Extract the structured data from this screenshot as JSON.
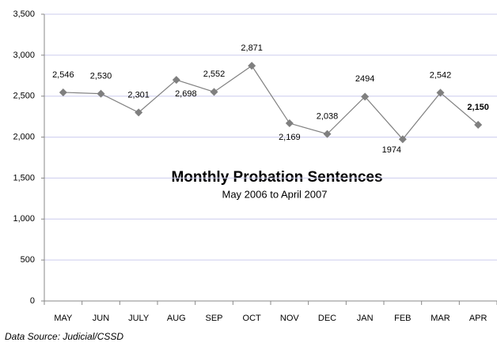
{
  "chart_data": {
    "type": "line",
    "title": "Monthly Probation Sentences",
    "subtitle": "May 2006 to April 2007",
    "source": "Data Source: Judicial/CSSD",
    "categories": [
      "MAY",
      "JUN",
      "JULY",
      "AUG",
      "SEP",
      "OCT",
      "NOV",
      "DEC",
      "JAN",
      "FEB",
      "MAR",
      "APR"
    ],
    "values": [
      2546,
      2530,
      2301,
      2698,
      2552,
      2871,
      2169,
      2038,
      2494,
      1974,
      2542,
      2150
    ],
    "value_labels": [
      "2,546",
      "2,530",
      "2,301",
      "2,698",
      "2,552",
      "2,871",
      "2,169",
      "2,038",
      "2494",
      "1974",
      "2,542",
      "2,150"
    ],
    "color": "#808080",
    "ylim": [
      0,
      3500
    ],
    "yticks": [
      0,
      500,
      {
        "value": 1000,
        "label": "1,000"
      },
      {
        "value": 1500,
        "label": "1,500"
      },
      {
        "value": 2000,
        "label": "2,000"
      },
      {
        "value": 2500,
        "label": "2,500"
      },
      {
        "value": 3000,
        "label": "3,000"
      },
      {
        "value": 3500,
        "label": "3,500"
      }
    ],
    "grid": true
  }
}
